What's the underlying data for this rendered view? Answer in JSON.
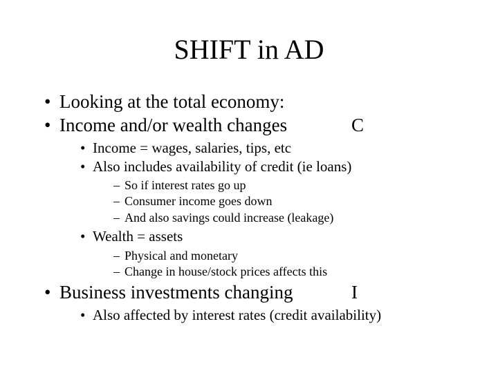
{
  "title": "SHIFT in AD",
  "bullets": {
    "b1": "Looking at the total economy:",
    "b2": "Income and/or wealth changes",
    "b2_trail": "C",
    "b2_1": "Income = wages, salaries, tips, etc",
    "b2_2": "Also includes availability of credit (ie loans)",
    "b2_2_1": "So if interest rates go up",
    "b2_2_2": "Consumer income goes down",
    "b2_2_3": "And also savings could increase (leakage)",
    "b2_3": "Wealth = assets",
    "b2_3_1": "Physical and monetary",
    "b2_3_2": "Change in house/stock prices affects this",
    "b3": "Business investments changing",
    "b3_trail": "I",
    "b3_1": "Also affected by interest rates (credit availability)"
  }
}
